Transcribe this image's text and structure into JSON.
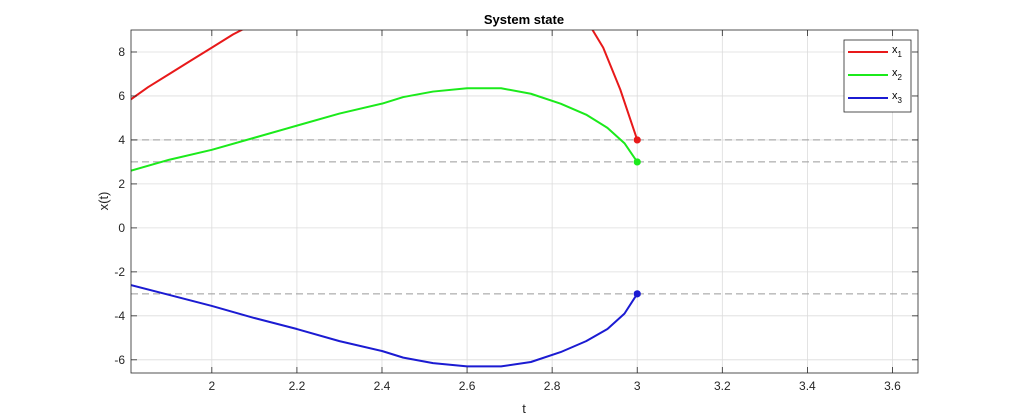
{
  "chart_data": {
    "type": "line",
    "title": "System state",
    "xlabel": "t",
    "ylabel": "x(t)",
    "xlim": [
      1.81,
      3.66
    ],
    "ylim": [
      -6.6,
      9.0
    ],
    "xticks": [
      2,
      2.2,
      2.4,
      2.6,
      2.8,
      3,
      3.2,
      3.4,
      3.6
    ],
    "xtick_labels": [
      "2",
      "2.2",
      "2.4",
      "2.6",
      "2.8",
      "3",
      "3.2",
      "3.4",
      "3.6"
    ],
    "yticks": [
      -6,
      -4,
      -2,
      0,
      2,
      4,
      6,
      8
    ],
    "ytick_labels": [
      "-6",
      "-4",
      "-2",
      "0",
      "2",
      "4",
      "6",
      "8"
    ],
    "grid": true,
    "legend_position": "top-right",
    "reference_lines": [
      4,
      3,
      -3
    ],
    "series": [
      {
        "name": "x",
        "subscript": "1",
        "color": "#e8191a",
        "x": [
          1.81,
          1.85,
          1.9,
          1.95,
          2.0,
          2.05,
          2.09,
          2.12,
          2.87,
          2.92,
          2.96,
          3.0
        ],
        "y": [
          5.85,
          6.4,
          7.0,
          7.6,
          8.2,
          8.8,
          9.2,
          9.6,
          9.8,
          8.2,
          6.3,
          4.0
        ],
        "endpoint": [
          3.0,
          4.0
        ]
      },
      {
        "name": "x",
        "subscript": "2",
        "color": "#1bea1b",
        "x": [
          1.81,
          1.9,
          2.0,
          2.1,
          2.2,
          2.3,
          2.4,
          2.45,
          2.52,
          2.6,
          2.68,
          2.75,
          2.82,
          2.88,
          2.93,
          2.97,
          3.0
        ],
        "y": [
          2.6,
          3.1,
          3.55,
          4.1,
          4.65,
          5.2,
          5.65,
          5.95,
          6.2,
          6.35,
          6.35,
          6.1,
          5.65,
          5.15,
          4.55,
          3.85,
          3.0
        ],
        "endpoint": [
          3.0,
          3.0
        ]
      },
      {
        "name": "x",
        "subscript": "3",
        "color": "#1b1bd2",
        "x": [
          1.81,
          1.9,
          2.0,
          2.1,
          2.2,
          2.3,
          2.4,
          2.45,
          2.52,
          2.6,
          2.68,
          2.75,
          2.82,
          2.88,
          2.93,
          2.97,
          3.0
        ],
        "y": [
          -2.6,
          -3.05,
          -3.55,
          -4.1,
          -4.6,
          -5.15,
          -5.6,
          -5.9,
          -6.15,
          -6.3,
          -6.3,
          -6.1,
          -5.65,
          -5.15,
          -4.6,
          -3.9,
          -3.0
        ],
        "endpoint": [
          3.0,
          -3.0
        ]
      }
    ]
  }
}
